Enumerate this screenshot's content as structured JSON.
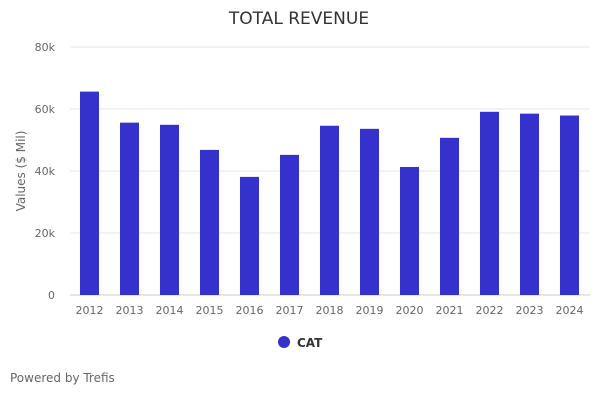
{
  "chart_data": {
    "type": "bar",
    "title": "TOTAL REVENUE",
    "xlabel": "",
    "ylabel": "Values ($ Mil)",
    "ylim": [
      0,
      80000
    ],
    "yticks": [
      0,
      20000,
      40000,
      60000,
      80000
    ],
    "ytick_labels": [
      "0",
      "20k",
      "40k",
      "60k",
      "80k"
    ],
    "grid": true,
    "legend_position": "bottom-center",
    "categories": [
      "2012",
      "2013",
      "2014",
      "2015",
      "2016",
      "2017",
      "2018",
      "2019",
      "2020",
      "2021",
      "2022",
      "2023",
      "2024"
    ],
    "series": [
      {
        "name": "CAT",
        "color": "#3431cc",
        "values": [
          65600,
          55600,
          54900,
          46800,
          38100,
          45200,
          54600,
          53600,
          41300,
          50700,
          59100,
          58500,
          57900
        ]
      }
    ]
  },
  "footer": {
    "text": "Powered by Trefis"
  }
}
